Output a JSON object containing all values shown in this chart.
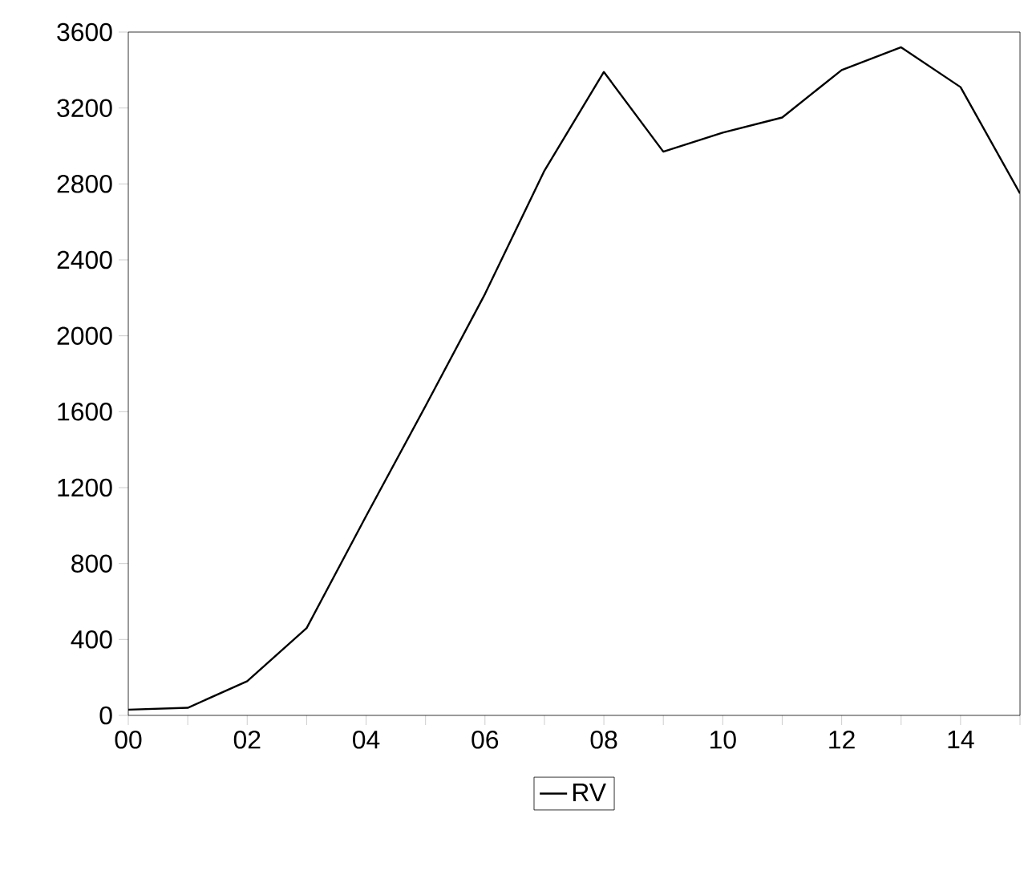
{
  "chart_data": {
    "type": "line",
    "x": [
      0,
      1,
      2,
      3,
      4,
      5,
      6,
      7,
      8,
      9,
      10,
      11,
      12,
      13,
      14,
      15
    ],
    "series": [
      {
        "name": "RV",
        "color": "#000000",
        "values": [
          30,
          40,
          180,
          460,
          1050,
          1630,
          2220,
          2870,
          3390,
          2970,
          3070,
          3150,
          3400,
          3520,
          3310,
          2750
        ]
      }
    ],
    "xlim": [
      0,
      15
    ],
    "xticks": [
      {
        "value": 0,
        "label": "00"
      },
      {
        "value": 1,
        "label": null
      },
      {
        "value": 2,
        "label": "02"
      },
      {
        "value": 3,
        "label": null
      },
      {
        "value": 4,
        "label": "04"
      },
      {
        "value": 5,
        "label": null
      },
      {
        "value": 6,
        "label": "06"
      },
      {
        "value": 7,
        "label": null
      },
      {
        "value": 8,
        "label": "08"
      },
      {
        "value": 9,
        "label": null
      },
      {
        "value": 10,
        "label": "10"
      },
      {
        "value": 11,
        "label": null
      },
      {
        "value": 12,
        "label": "12"
      },
      {
        "value": 13,
        "label": null
      },
      {
        "value": 14,
        "label": "14"
      },
      {
        "value": 15,
        "label": null
      }
    ],
    "ylim": [
      0,
      3600
    ],
    "yticks": [
      0,
      400,
      800,
      1200,
      1600,
      2000,
      2400,
      2800,
      3200,
      3600
    ],
    "grid": false,
    "legend": "bottom",
    "marker": "none",
    "line_style": "solid"
  }
}
